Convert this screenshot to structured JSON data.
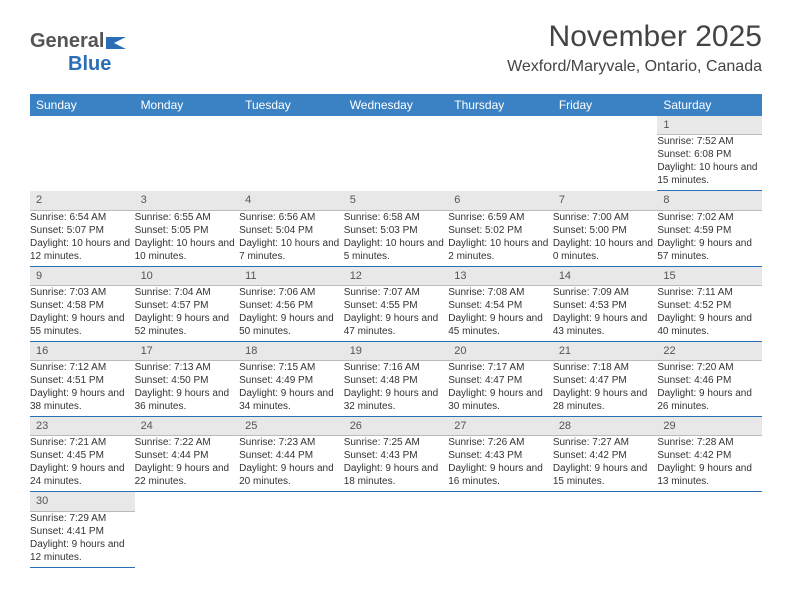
{
  "logo": {
    "text1": "General",
    "text2": "Blue"
  },
  "title": "November 2025",
  "location": "Wexford/Maryvale, Ontario, Canada",
  "colors": {
    "header_bg": "#3b82c4",
    "header_text": "#ffffff",
    "daynum_bg": "#e8e8e8",
    "row_divider": "#2a6fb5",
    "logo_blue": "#2a6fb5",
    "body_text": "#333333"
  },
  "fonts": {
    "title_size": 30,
    "location_size": 16,
    "th_size": 12,
    "cell_size": 10
  },
  "days_of_week": [
    "Sunday",
    "Monday",
    "Tuesday",
    "Wednesday",
    "Thursday",
    "Friday",
    "Saturday"
  ],
  "weeks": [
    [
      null,
      null,
      null,
      null,
      null,
      null,
      {
        "n": "1",
        "sr": "Sunrise: 7:52 AM",
        "ss": "Sunset: 6:08 PM",
        "dl": "Daylight: 10 hours and 15 minutes."
      }
    ],
    [
      {
        "n": "2",
        "sr": "Sunrise: 6:54 AM",
        "ss": "Sunset: 5:07 PM",
        "dl": "Daylight: 10 hours and 12 minutes."
      },
      {
        "n": "3",
        "sr": "Sunrise: 6:55 AM",
        "ss": "Sunset: 5:05 PM",
        "dl": "Daylight: 10 hours and 10 minutes."
      },
      {
        "n": "4",
        "sr": "Sunrise: 6:56 AM",
        "ss": "Sunset: 5:04 PM",
        "dl": "Daylight: 10 hours and 7 minutes."
      },
      {
        "n": "5",
        "sr": "Sunrise: 6:58 AM",
        "ss": "Sunset: 5:03 PM",
        "dl": "Daylight: 10 hours and 5 minutes."
      },
      {
        "n": "6",
        "sr": "Sunrise: 6:59 AM",
        "ss": "Sunset: 5:02 PM",
        "dl": "Daylight: 10 hours and 2 minutes."
      },
      {
        "n": "7",
        "sr": "Sunrise: 7:00 AM",
        "ss": "Sunset: 5:00 PM",
        "dl": "Daylight: 10 hours and 0 minutes."
      },
      {
        "n": "8",
        "sr": "Sunrise: 7:02 AM",
        "ss": "Sunset: 4:59 PM",
        "dl": "Daylight: 9 hours and 57 minutes."
      }
    ],
    [
      {
        "n": "9",
        "sr": "Sunrise: 7:03 AM",
        "ss": "Sunset: 4:58 PM",
        "dl": "Daylight: 9 hours and 55 minutes."
      },
      {
        "n": "10",
        "sr": "Sunrise: 7:04 AM",
        "ss": "Sunset: 4:57 PM",
        "dl": "Daylight: 9 hours and 52 minutes."
      },
      {
        "n": "11",
        "sr": "Sunrise: 7:06 AM",
        "ss": "Sunset: 4:56 PM",
        "dl": "Daylight: 9 hours and 50 minutes."
      },
      {
        "n": "12",
        "sr": "Sunrise: 7:07 AM",
        "ss": "Sunset: 4:55 PM",
        "dl": "Daylight: 9 hours and 47 minutes."
      },
      {
        "n": "13",
        "sr": "Sunrise: 7:08 AM",
        "ss": "Sunset: 4:54 PM",
        "dl": "Daylight: 9 hours and 45 minutes."
      },
      {
        "n": "14",
        "sr": "Sunrise: 7:09 AM",
        "ss": "Sunset: 4:53 PM",
        "dl": "Daylight: 9 hours and 43 minutes."
      },
      {
        "n": "15",
        "sr": "Sunrise: 7:11 AM",
        "ss": "Sunset: 4:52 PM",
        "dl": "Daylight: 9 hours and 40 minutes."
      }
    ],
    [
      {
        "n": "16",
        "sr": "Sunrise: 7:12 AM",
        "ss": "Sunset: 4:51 PM",
        "dl": "Daylight: 9 hours and 38 minutes."
      },
      {
        "n": "17",
        "sr": "Sunrise: 7:13 AM",
        "ss": "Sunset: 4:50 PM",
        "dl": "Daylight: 9 hours and 36 minutes."
      },
      {
        "n": "18",
        "sr": "Sunrise: 7:15 AM",
        "ss": "Sunset: 4:49 PM",
        "dl": "Daylight: 9 hours and 34 minutes."
      },
      {
        "n": "19",
        "sr": "Sunrise: 7:16 AM",
        "ss": "Sunset: 4:48 PM",
        "dl": "Daylight: 9 hours and 32 minutes."
      },
      {
        "n": "20",
        "sr": "Sunrise: 7:17 AM",
        "ss": "Sunset: 4:47 PM",
        "dl": "Daylight: 9 hours and 30 minutes."
      },
      {
        "n": "21",
        "sr": "Sunrise: 7:18 AM",
        "ss": "Sunset: 4:47 PM",
        "dl": "Daylight: 9 hours and 28 minutes."
      },
      {
        "n": "22",
        "sr": "Sunrise: 7:20 AM",
        "ss": "Sunset: 4:46 PM",
        "dl": "Daylight: 9 hours and 26 minutes."
      }
    ],
    [
      {
        "n": "23",
        "sr": "Sunrise: 7:21 AM",
        "ss": "Sunset: 4:45 PM",
        "dl": "Daylight: 9 hours and 24 minutes."
      },
      {
        "n": "24",
        "sr": "Sunrise: 7:22 AM",
        "ss": "Sunset: 4:44 PM",
        "dl": "Daylight: 9 hours and 22 minutes."
      },
      {
        "n": "25",
        "sr": "Sunrise: 7:23 AM",
        "ss": "Sunset: 4:44 PM",
        "dl": "Daylight: 9 hours and 20 minutes."
      },
      {
        "n": "26",
        "sr": "Sunrise: 7:25 AM",
        "ss": "Sunset: 4:43 PM",
        "dl": "Daylight: 9 hours and 18 minutes."
      },
      {
        "n": "27",
        "sr": "Sunrise: 7:26 AM",
        "ss": "Sunset: 4:43 PM",
        "dl": "Daylight: 9 hours and 16 minutes."
      },
      {
        "n": "28",
        "sr": "Sunrise: 7:27 AM",
        "ss": "Sunset: 4:42 PM",
        "dl": "Daylight: 9 hours and 15 minutes."
      },
      {
        "n": "29",
        "sr": "Sunrise: 7:28 AM",
        "ss": "Sunset: 4:42 PM",
        "dl": "Daylight: 9 hours and 13 minutes."
      }
    ],
    [
      {
        "n": "30",
        "sr": "Sunrise: 7:29 AM",
        "ss": "Sunset: 4:41 PM",
        "dl": "Daylight: 9 hours and 12 minutes."
      },
      null,
      null,
      null,
      null,
      null,
      null
    ]
  ]
}
